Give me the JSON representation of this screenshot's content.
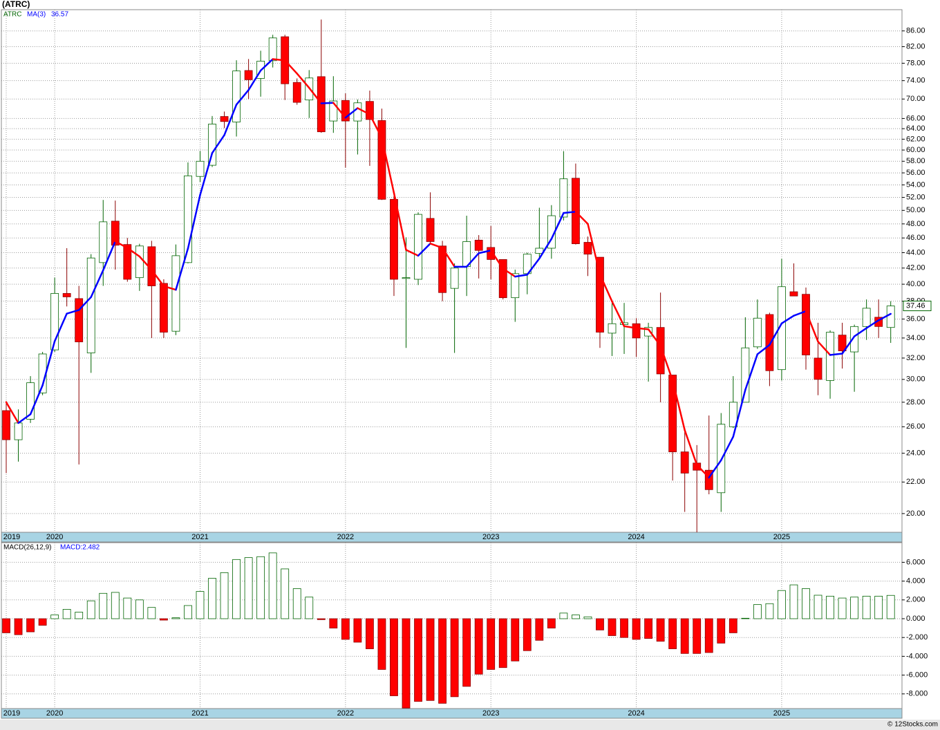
{
  "footer": "© 12Stocks.com",
  "chart_data": [
    {
      "type": "candlestick",
      "title": "(ATRC)",
      "symbol": "ATRC",
      "categories": [
        "2019",
        null,
        null,
        null,
        "2020",
        null,
        null,
        null,
        null,
        null,
        null,
        null,
        null,
        null,
        null,
        null,
        "2021",
        null,
        null,
        null,
        null,
        null,
        null,
        null,
        null,
        null,
        null,
        null,
        "2022",
        null,
        null,
        null,
        null,
        null,
        null,
        null,
        null,
        null,
        null,
        null,
        "2023",
        null,
        null,
        null,
        null,
        null,
        null,
        null,
        null,
        null,
        null,
        null,
        "2024",
        null,
        null,
        null,
        null,
        null,
        null,
        null,
        null,
        null,
        null,
        null,
        "2025",
        null,
        null,
        null,
        null,
        null,
        null,
        null,
        null,
        null
      ],
      "open": [
        27.3,
        25.0,
        26.6,
        28.8,
        32.8,
        38.9,
        38.3,
        32.5,
        42.7,
        48.4,
        45.1,
        40.8,
        44.8,
        40.1,
        34.7,
        42.7,
        55.4,
        57.3,
        66.4,
        65.3,
        76.3,
        74.5,
        78.6,
        84.5,
        73.6,
        69.8,
        74.9,
        65.5,
        69.7,
        65.5,
        69.5,
        65.6,
        51.7,
        40.7,
        40.6,
        48.8,
        44.9,
        39.5,
        42.2,
        45.7,
        44.7,
        43.1,
        38.4,
        41.3,
        43.9,
        44.6,
        49.0,
        55.1,
        45.4,
        43.4,
        34.5,
        35.4,
        35.5,
        34.2,
        35.1,
        30.4,
        24.1,
        23.3,
        22.8,
        21.3,
        26.0,
        28.0,
        33.1,
        36.5,
        30.9,
        39.1,
        38.8,
        32.0,
        29.9,
        34.3,
        32.6,
        35.2,
        36.2,
        35.1
      ],
      "high": [
        28.1,
        27.4,
        30.3,
        32.6,
        40.8,
        44.6,
        39.8,
        43.8,
        51.6,
        51.5,
        46.0,
        45.2,
        45.6,
        40.6,
        45.1,
        57.8,
        59.8,
        66.5,
        67.4,
        78.7,
        79.0,
        81.0,
        85.0,
        85.0,
        74.5,
        76.4,
        89.0,
        75.0,
        71.2,
        69.9,
        71.8,
        68.0,
        52.3,
        46.1,
        49.7,
        52.8,
        45.6,
        42.6,
        49.2,
        46.4,
        47.7,
        43.1,
        41.8,
        44.0,
        50.4,
        50.8,
        59.8,
        57.6,
        46.2,
        43.4,
        37.8,
        37.8,
        36.1,
        35.6,
        39.0,
        30.4,
        25.9,
        24.6,
        26.9,
        27.1,
        30.3,
        36.2,
        38.2,
        36.7,
        43.2,
        42.6,
        39.6,
        35.6,
        34.8,
        35.6,
        35.4,
        38.2,
        38.2,
        38.0
      ],
      "low": [
        22.6,
        23.4,
        26.3,
        28.6,
        32.6,
        37.4,
        23.2,
        30.6,
        39.8,
        41.8,
        40.3,
        39.2,
        34.0,
        34.0,
        34.3,
        42.6,
        54.5,
        57.0,
        64.1,
        62.5,
        70.0,
        70.5,
        77.0,
        69.8,
        68.8,
        66.1,
        63.2,
        63.2,
        56.9,
        59.2,
        57.2,
        51.6,
        38.6,
        33.0,
        39.9,
        45.3,
        38.0,
        32.5,
        38.6,
        40.7,
        40.6,
        38.2,
        35.7,
        38.8,
        43.4,
        43.2,
        48.5,
        45.1,
        41.0,
        33.0,
        32.2,
        32.4,
        32.1,
        29.8,
        28.0,
        22.1,
        20.1,
        18.9,
        21.2,
        20.1,
        25.9,
        28.0,
        32.9,
        29.4,
        29.9,
        38.6,
        30.9,
        28.6,
        28.3,
        31.0,
        28.9,
        33.8,
        34.0,
        33.5
      ],
      "close": [
        25.0,
        26.3,
        29.7,
        32.4,
        38.9,
        38.5,
        33.6,
        43.3,
        48.3,
        45.0,
        40.6,
        44.9,
        39.8,
        34.6,
        43.6,
        55.5,
        58.0,
        64.9,
        65.4,
        76.2,
        74.2,
        78.5,
        84.2,
        73.3,
        69.3,
        74.6,
        63.4,
        69.6,
        65.5,
        69.2,
        65.8,
        51.7,
        40.6,
        40.8,
        49.4,
        45.5,
        39.0,
        42.0,
        45.5,
        44.3,
        43.1,
        38.4,
        41.3,
        43.8,
        44.6,
        49.2,
        55.0,
        45.2,
        43.8,
        34.6,
        35.5,
        35.6,
        34.0,
        35.1,
        30.5,
        24.1,
        22.6,
        22.8,
        21.5,
        26.2,
        28.0,
        33.0,
        36.1,
        30.8,
        39.7,
        38.6,
        32.3,
        30.0,
        34.6,
        32.7,
        35.2,
        37.2,
        35.2,
        37.46
      ],
      "up_color": "#006400",
      "down_color": "#ff0000",
      "ma": {
        "name": "MA(3)",
        "up_color": "#0000ff",
        "down_color": "#ff0000",
        "values": [
          28.0,
          26.3,
          27.0,
          29.47,
          33.67,
          36.6,
          37.0,
          38.47,
          41.73,
          45.53,
          44.63,
          43.5,
          41.77,
          39.77,
          39.33,
          44.57,
          52.37,
          59.47,
          62.77,
          68.83,
          71.93,
          76.3,
          78.97,
          78.67,
          75.6,
          72.4,
          69.1,
          69.2,
          66.17,
          68.1,
          66.83,
          62.23,
          52.7,
          44.37,
          43.6,
          45.23,
          44.63,
          42.17,
          42.17,
          43.93,
          44.3,
          41.93,
          40.93,
          41.17,
          43.23,
          45.87,
          49.6,
          49.8,
          48.0,
          41.2,
          37.97,
          35.23,
          35.03,
          34.9,
          33.2,
          29.9,
          25.73,
          23.17,
          22.3,
          23.5,
          25.23,
          29.07,
          32.37,
          33.3,
          35.53,
          36.37,
          36.87,
          33.63,
          32.3,
          32.43,
          34.17,
          35.03,
          35.87,
          36.57
        ]
      },
      "log_scale": true,
      "grid": true,
      "ylim": [
        18.9,
        91.7
      ],
      "yticks": [
        {
          "value": 20,
          "label": "20.00"
        },
        {
          "value": 22,
          "label": "22.00"
        },
        {
          "value": 24,
          "label": "24.00"
        },
        {
          "value": 26,
          "label": "26.00"
        },
        {
          "value": 28,
          "label": "28.00"
        },
        {
          "value": 30,
          "label": "30.00"
        },
        {
          "value": 32,
          "label": "32.00"
        },
        {
          "value": 34,
          "label": "34.00"
        },
        {
          "value": 36,
          "label": "36.00"
        },
        {
          "value": 38,
          "label": "38.00"
        },
        {
          "value": 40,
          "label": "40.00"
        },
        {
          "value": 42,
          "label": "42.00"
        },
        {
          "value": 44,
          "label": "44.00"
        },
        {
          "value": 46,
          "label": "46.00"
        },
        {
          "value": 48,
          "label": "48.00"
        },
        {
          "value": 50,
          "label": "50.00"
        },
        {
          "value": 52,
          "label": "52.00"
        },
        {
          "value": 54,
          "label": "54.00"
        },
        {
          "value": 56,
          "label": "56.00"
        },
        {
          "value": 58,
          "label": "58.00"
        },
        {
          "value": 60,
          "label": "60.00"
        },
        {
          "value": 62,
          "label": "62.00"
        },
        {
          "value": 64,
          "label": "64.00"
        },
        {
          "value": 66,
          "label": "66.00"
        },
        {
          "value": 70,
          "label": "70.00"
        },
        {
          "value": 74,
          "label": "74.00"
        },
        {
          "value": 78,
          "label": "78.00"
        },
        {
          "value": 82,
          "label": "82.00"
        },
        {
          "value": 86,
          "label": "86.00"
        }
      ]
    },
    {
      "type": "bar",
      "name": "MACD(26,12,9)",
      "value_text": "MACD:2.482",
      "categories": [
        "2019",
        null,
        null,
        null,
        "2020",
        null,
        null,
        null,
        null,
        null,
        null,
        null,
        null,
        null,
        null,
        null,
        "2021",
        null,
        null,
        null,
        null,
        null,
        null,
        null,
        null,
        null,
        null,
        null,
        "2022",
        null,
        null,
        null,
        null,
        null,
        null,
        null,
        null,
        null,
        null,
        null,
        "2023",
        null,
        null,
        null,
        null,
        null,
        null,
        null,
        null,
        null,
        null,
        null,
        "2024",
        null,
        null,
        null,
        null,
        null,
        null,
        null,
        null,
        null,
        null,
        null,
        "2025",
        null,
        null,
        null,
        null,
        null,
        null,
        null,
        null,
        null
      ],
      "values": [
        -1.5,
        -1.7,
        -1.4,
        -0.7,
        0.4,
        1.0,
        0.7,
        1.9,
        2.7,
        2.8,
        2.2,
        2.0,
        1.2,
        -0.15,
        0.1,
        1.4,
        2.9,
        4.3,
        4.9,
        6.3,
        6.5,
        6.6,
        7.0,
        5.3,
        3.2,
        2.3,
        -0.1,
        -1.0,
        -2.2,
        -2.5,
        -3.2,
        -5.4,
        -8.2,
        -9.5,
        -8.8,
        -8.7,
        -9.0,
        -8.3,
        -7.2,
        -5.9,
        -5.4,
        -5.2,
        -4.5,
        -3.4,
        -2.3,
        -1.0,
        0.6,
        0.4,
        0.2,
        -1.2,
        -1.8,
        -2.0,
        -2.2,
        -2.1,
        -2.4,
        -3.2,
        -3.7,
        -3.7,
        -3.6,
        -2.6,
        -1.5,
        0.05,
        1.5,
        1.6,
        3.0,
        3.6,
        3.2,
        2.5,
        2.4,
        2.2,
        2.3,
        2.4,
        2.4,
        2.482
      ],
      "pos_color": "#006400",
      "neg_color": "#ff0000",
      "grid": true,
      "ylim": [
        -9.56,
        8.09
      ],
      "yticks": [
        {
          "value": -8,
          "label": "-8.000"
        },
        {
          "value": -6,
          "label": "-6.000"
        },
        {
          "value": -4,
          "label": "-4.000"
        },
        {
          "value": -2,
          "label": "-2.000"
        },
        {
          "value": 0,
          "label": "0.000"
        },
        {
          "value": 2,
          "label": "2.000"
        },
        {
          "value": 4,
          "label": "4.000"
        },
        {
          "value": 6,
          "label": "6.000"
        }
      ]
    }
  ]
}
